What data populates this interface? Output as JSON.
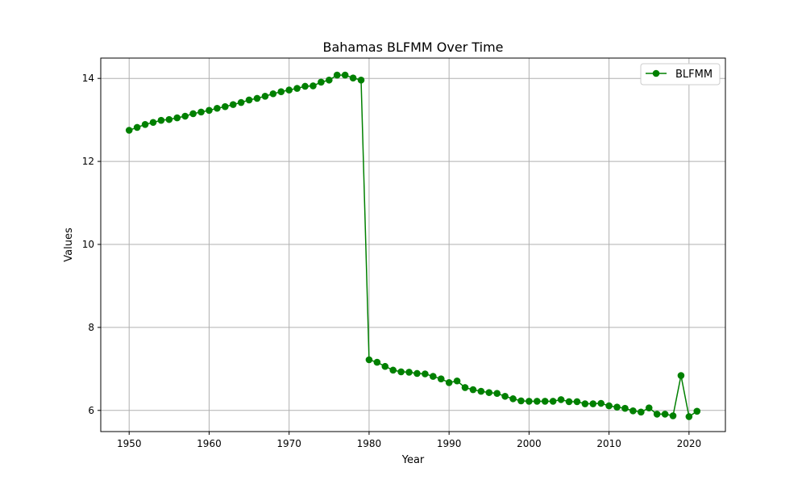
{
  "chart_data": {
    "type": "line",
    "title": "Bahamas BLFMM Over Time",
    "xlabel": "Year",
    "ylabel": "Values",
    "xlim": [
      1946.45,
      2024.55
    ],
    "ylim": [
      5.49,
      14.49
    ],
    "xticks": [
      1950,
      1960,
      1970,
      1980,
      1990,
      2000,
      2010,
      2020
    ],
    "yticks": [
      6,
      8,
      10,
      12,
      14
    ],
    "grid": true,
    "legend_position": "top-right",
    "colors": {
      "series": "#008000",
      "grid": "#b0b0b0",
      "axis": "#000000"
    },
    "series": [
      {
        "name": "BLFMM",
        "marker": "circle",
        "x": [
          1950,
          1951,
          1952,
          1953,
          1954,
          1955,
          1956,
          1957,
          1958,
          1959,
          1960,
          1961,
          1962,
          1963,
          1964,
          1965,
          1966,
          1967,
          1968,
          1969,
          1970,
          1971,
          1972,
          1973,
          1974,
          1975,
          1976,
          1977,
          1978,
          1979,
          1980,
          1981,
          1982,
          1983,
          1984,
          1985,
          1986,
          1987,
          1988,
          1989,
          1990,
          1991,
          1992,
          1993,
          1994,
          1995,
          1996,
          1997,
          1998,
          1999,
          2000,
          2001,
          2002,
          2003,
          2004,
          2005,
          2006,
          2007,
          2008,
          2009,
          2010,
          2011,
          2012,
          2013,
          2014,
          2015,
          2016,
          2017,
          2018,
          2019,
          2020,
          2021
        ],
        "y": [
          12.75,
          12.82,
          12.89,
          12.94,
          12.99,
          13.01,
          13.05,
          13.09,
          13.15,
          13.19,
          13.23,
          13.28,
          13.32,
          13.37,
          13.42,
          13.48,
          13.52,
          13.57,
          13.63,
          13.68,
          13.72,
          13.76,
          13.81,
          13.82,
          13.91,
          13.96,
          14.08,
          14.08,
          14.01,
          13.96,
          7.22,
          7.16,
          7.06,
          6.97,
          6.93,
          6.92,
          6.89,
          6.88,
          6.82,
          6.76,
          6.67,
          6.71,
          6.55,
          6.5,
          6.46,
          6.43,
          6.41,
          6.34,
          6.28,
          6.23,
          6.22,
          6.22,
          6.22,
          6.22,
          6.26,
          6.21,
          6.21,
          6.16,
          6.16,
          6.17,
          6.11,
          6.08,
          6.05,
          5.99,
          5.96,
          6.06,
          5.91,
          5.91,
          5.87,
          6.84,
          5.85,
          5.98
        ]
      }
    ]
  }
}
